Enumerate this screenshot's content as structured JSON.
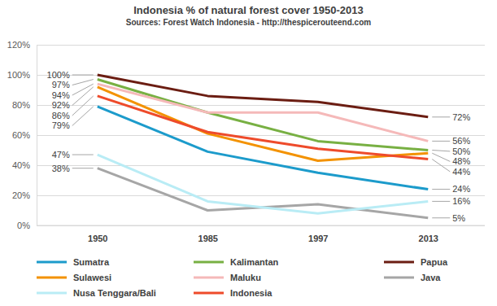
{
  "chart_data": {
    "type": "line",
    "title": "Indonesia % of natural forest cover 1950-2013",
    "subtitle": "Sources: Forest Watch Indonesia - http://thespicerouteend.com",
    "categories": [
      "1950",
      "1985",
      "1997",
      "2013"
    ],
    "ylim": [
      0,
      120
    ],
    "yticks": [
      {
        "value": 0,
        "label": "0%"
      },
      {
        "value": 20,
        "label": "20%"
      },
      {
        "value": 40,
        "label": "40%"
      },
      {
        "value": 60,
        "label": "60%"
      },
      {
        "value": 80,
        "label": "80%"
      },
      {
        "value": 100,
        "label": "100%"
      },
      {
        "value": 120,
        "label": "120%"
      }
    ],
    "grid": true,
    "legend": "bottom",
    "data_labels": true,
    "series": [
      {
        "name": "Sumatra",
        "color": "#1c9bcb",
        "values": [
          79,
          49,
          35,
          24
        ],
        "value_labels": [
          "79%",
          null,
          null,
          "24%"
        ]
      },
      {
        "name": "Kalimantan",
        "color": "#78b043",
        "values": [
          97,
          75,
          56,
          50
        ],
        "value_labels": [
          "97%",
          null,
          null,
          "50%"
        ]
      },
      {
        "name": "Papua",
        "color": "#6b1d12",
        "values": [
          100,
          86,
          82,
          72
        ],
        "value_labels": [
          "100%",
          null,
          null,
          "72%"
        ]
      },
      {
        "name": "Sulawesi",
        "color": "#f39200",
        "values": [
          92,
          61,
          43,
          48
        ],
        "value_labels": [
          "92%",
          null,
          null,
          "48%"
        ]
      },
      {
        "name": "Maluku",
        "color": "#f5b9b9",
        "values": [
          94,
          75,
          75,
          56
        ],
        "value_labels": [
          "94%",
          null,
          null,
          "56%"
        ]
      },
      {
        "name": "Java",
        "color": "#a6a6a6",
        "values": [
          38,
          10,
          14,
          5
        ],
        "value_labels": [
          "38%",
          null,
          null,
          "5%"
        ]
      },
      {
        "name": "Nusa Tenggara/Bali",
        "color": "#b9ecf5",
        "values": [
          47,
          16,
          8,
          16
        ],
        "value_labels": [
          "47%",
          null,
          null,
          "16%"
        ]
      },
      {
        "name": "Indonesia",
        "color": "#ee4b2b",
        "values": [
          86,
          62,
          51,
          44
        ],
        "value_labels": [
          "86%",
          null,
          null,
          "44%"
        ]
      }
    ]
  }
}
